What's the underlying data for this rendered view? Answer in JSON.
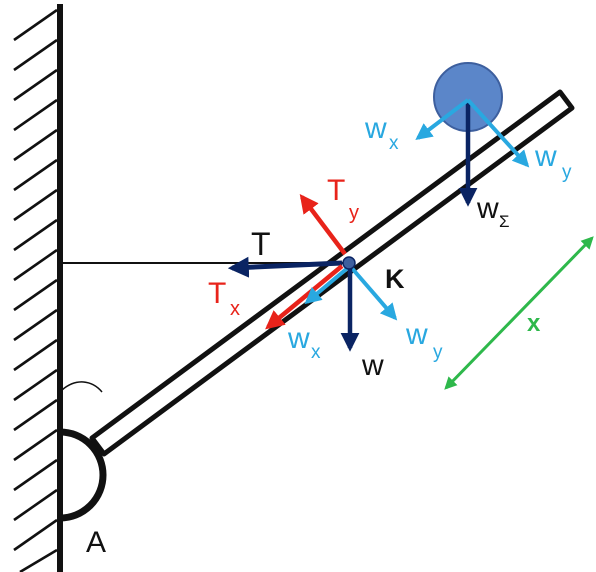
{
  "colors": {
    "outline": "#111111",
    "force_dark": "#0a2463",
    "force_light": "#29a8e0",
    "tension": "#e8231a",
    "dimension": "#2eb84b",
    "ball_fill": "#5b86c9",
    "ball_stroke": "#3d5f9e"
  },
  "labels": {
    "pivot": "A",
    "point": "K",
    "T": "T",
    "Tx_main": "T",
    "Tx_sub": "x",
    "Ty_main": "T",
    "Ty_sub": "y",
    "w": "w",
    "wx_main": "w",
    "wx_sub": "x",
    "wy_main": "w",
    "wy_sub": "y",
    "wx2_main": "w",
    "wx2_sub": "x",
    "wy2_main": "w",
    "wy2_sub": "y",
    "wsum_main": "w",
    "wsum_sub": "Σ",
    "x": "x"
  }
}
